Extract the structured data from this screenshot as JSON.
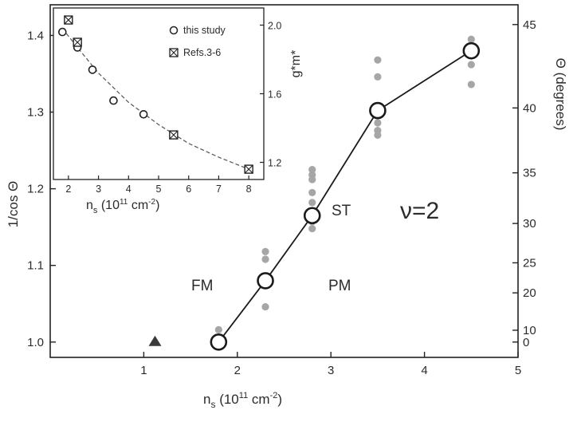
{
  "chart_data": [
    {
      "type": "scatter",
      "xlabel_main": "n",
      "xlabel_sub": "s",
      "xlabel_rest": " (10",
      "xlabel_exp": "11",
      "xlabel_unit": " cm",
      "xlabel_unit_exp": "-2",
      "xlabel_close": ")",
      "ylabel_left": "1/cos Θ",
      "ylabel_right": "Θ (degrees)",
      "xlim": [
        0,
        5
      ],
      "ylim": [
        0.98,
        1.44
      ],
      "x_ticks": [
        1,
        2,
        3,
        4,
        5
      ],
      "y_ticks": [
        1.0,
        1.1,
        1.2,
        1.3,
        1.4
      ],
      "y_tick_labels": [
        "1.0",
        "1.1",
        "1.2",
        "1.3",
        "1.4"
      ],
      "right_ticks_deg": [
        0,
        10,
        20,
        25,
        30,
        35,
        40,
        45
      ],
      "series": [
        {
          "marker": "open-circle-line",
          "x": [
            1.8,
            2.3,
            2.8,
            3.5,
            4.5
          ],
          "y": [
            1.0,
            1.08,
            1.165,
            1.302,
            1.38
          ]
        },
        {
          "marker": "gray-dot",
          "x": [
            1.8,
            2.3,
            2.3,
            2.3,
            2.8,
            2.8,
            2.8,
            2.8,
            2.8,
            2.8,
            2.8,
            3.5,
            3.5,
            3.5,
            3.5,
            3.5,
            4.5,
            4.5,
            4.5,
            4.5
          ],
          "y": [
            1.016,
            1.046,
            1.108,
            1.118,
            1.148,
            1.157,
            1.182,
            1.195,
            1.212,
            1.218,
            1.225,
            1.27,
            1.276,
            1.286,
            1.346,
            1.368,
            1.336,
            1.362,
            1.38,
            1.395
          ]
        },
        {
          "marker": "triangle",
          "x": [
            1.12
          ],
          "y": [
            1.0
          ]
        }
      ],
      "annotations": [
        "FM",
        "PM",
        "ST",
        "ν=2"
      ],
      "colors": {
        "line": "#1a1a1a",
        "dots": "#a6a6a6",
        "triangle": "#3a3a3a"
      }
    },
    {
      "type": "scatter",
      "inset": true,
      "xlabel_main": "n",
      "xlabel_sub": "s",
      "xlabel_rest": " (10",
      "xlabel_exp": "11",
      "xlabel_unit": " cm",
      "xlabel_unit_exp": "-2",
      "xlabel_close": ")",
      "ylabel_right": "g*m*",
      "xlim": [
        1.5,
        8.5
      ],
      "ylim": [
        1.1,
        2.1
      ],
      "x_ticks": [
        2,
        3,
        4,
        5,
        6,
        7,
        8
      ],
      "y_ticks": [
        1.2,
        1.6,
        2.0
      ],
      "y_tick_labels": [
        "1.2",
        "1.6",
        "2.0"
      ],
      "legend": [
        "this study",
        "Refs.3-6"
      ],
      "series": [
        {
          "name": "this study",
          "marker": "open-circle",
          "x": [
            1.8,
            2.3,
            2.8,
            3.5,
            4.5
          ],
          "y": [
            1.96,
            1.87,
            1.74,
            1.56,
            1.48
          ]
        },
        {
          "name": "Refs.3-6",
          "marker": "crossed-square",
          "x": [
            2.0,
            2.3,
            5.5,
            8.0
          ],
          "y": [
            2.03,
            1.9,
            1.36,
            1.16
          ]
        }
      ],
      "fit_curve": {
        "style": "dashed",
        "x": [
          1.8,
          2.3,
          3,
          4,
          5,
          6,
          7,
          8
        ],
        "y": [
          1.98,
          1.87,
          1.72,
          1.55,
          1.42,
          1.31,
          1.23,
          1.16
        ]
      }
    }
  ]
}
